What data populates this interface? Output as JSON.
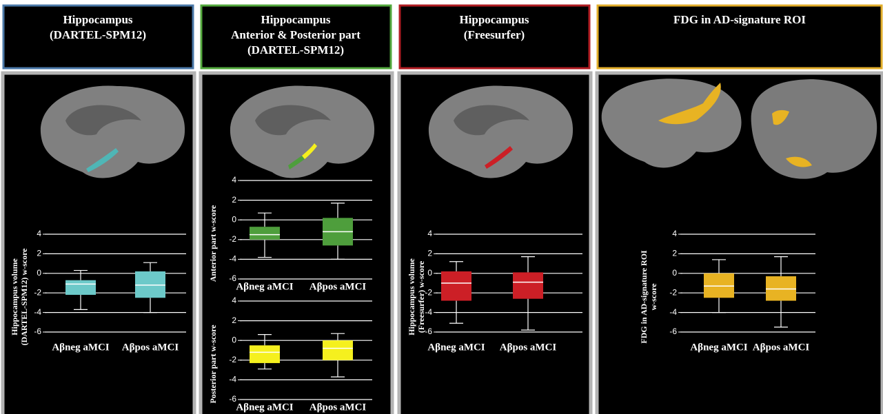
{
  "panels": [
    {
      "title": [
        "Hippocampus",
        "(DARTEL-SPM12)"
      ]
    },
    {
      "title": [
        "Hippocampus",
        "Anterior & Posterior part",
        "(DARTEL-SPM12)"
      ]
    },
    {
      "title": [
        "Hippocampus",
        "(Freesurfer)"
      ]
    },
    {
      "title": [
        "FDG in AD-signature ROI"
      ]
    }
  ],
  "chart_data": [
    {
      "type": "box",
      "ylabel": [
        "Hippocampus volume",
        "(DARTEL-SPM12) w-score"
      ],
      "categories": [
        "Aβneg aMCI",
        "Aβpos aMCI"
      ],
      "color": "#6cc9c9",
      "min": [
        -3.7,
        -4.0
      ],
      "q1": [
        -2.2,
        -2.5
      ],
      "median": [
        -1.1,
        -1.2
      ],
      "q3": [
        -0.7,
        0.2
      ],
      "max": [
        0.3,
        1.1
      ],
      "ylim": [
        -6,
        4
      ],
      "yticks": [
        -6,
        -4,
        -2,
        0,
        2,
        4
      ],
      "grid": true
    },
    {
      "type": "box",
      "ylabel": [
        "Anterior part w-score"
      ],
      "categories": [
        "Aβneg aMCI",
        "Aβpos aMCI"
      ],
      "color": "#4e9e3c",
      "min": [
        -3.8,
        -4.0
      ],
      "q1": [
        -2.0,
        -2.6
      ],
      "median": [
        -1.5,
        -1.2
      ],
      "q3": [
        -0.7,
        0.2
      ],
      "max": [
        0.7,
        1.7
      ],
      "ylim": [
        -6,
        4
      ],
      "yticks": [
        -6,
        -4,
        -2,
        0,
        2,
        4
      ],
      "grid": true
    },
    {
      "type": "box",
      "ylabel": [
        "Posterior part w-score"
      ],
      "categories": [
        "Aβneg aMCI",
        "Aβpos aMCI"
      ],
      "color": "#f5f01e",
      "min": [
        -2.9,
        -3.7
      ],
      "q1": [
        -2.3,
        -2.0
      ],
      "median": [
        -1.2,
        -0.8
      ],
      "q3": [
        -0.5,
        0.0
      ],
      "max": [
        0.6,
        0.7
      ],
      "ylim": [
        -6,
        4
      ],
      "yticks": [
        -6,
        -4,
        -2,
        0,
        2,
        4
      ],
      "grid": true
    },
    {
      "type": "box",
      "ylabel": [
        "Hippocampus volume",
        "(Freesurfer) w-score"
      ],
      "categories": [
        "Aβneg aMCI",
        "Aβpos aMCI"
      ],
      "color": "#cc1f26",
      "min": [
        -5.1,
        -5.8
      ],
      "q1": [
        -2.8,
        -2.6
      ],
      "median": [
        -1.0,
        -0.9
      ],
      "q3": [
        0.2,
        0.1
      ],
      "max": [
        1.2,
        1.7
      ],
      "ylim": [
        -6,
        4
      ],
      "yticks": [
        -6,
        -4,
        -2,
        0,
        2,
        4
      ],
      "grid": true
    },
    {
      "type": "box",
      "ylabel": [
        "FDG in AD-signature ROI",
        "w-score"
      ],
      "categories": [
        "Aβneg aMCI",
        "Aβpos aMCI"
      ],
      "color": "#e8b323",
      "min": [
        -4.0,
        -5.5
      ],
      "q1": [
        -2.5,
        -2.8
      ],
      "median": [
        -1.3,
        -1.6
      ],
      "q3": [
        0.0,
        -0.3
      ],
      "max": [
        1.4,
        1.7
      ],
      "ylim": [
        -6,
        4
      ],
      "yticks": [
        -6,
        -4,
        -2,
        0,
        2,
        4
      ],
      "grid": true
    }
  ]
}
